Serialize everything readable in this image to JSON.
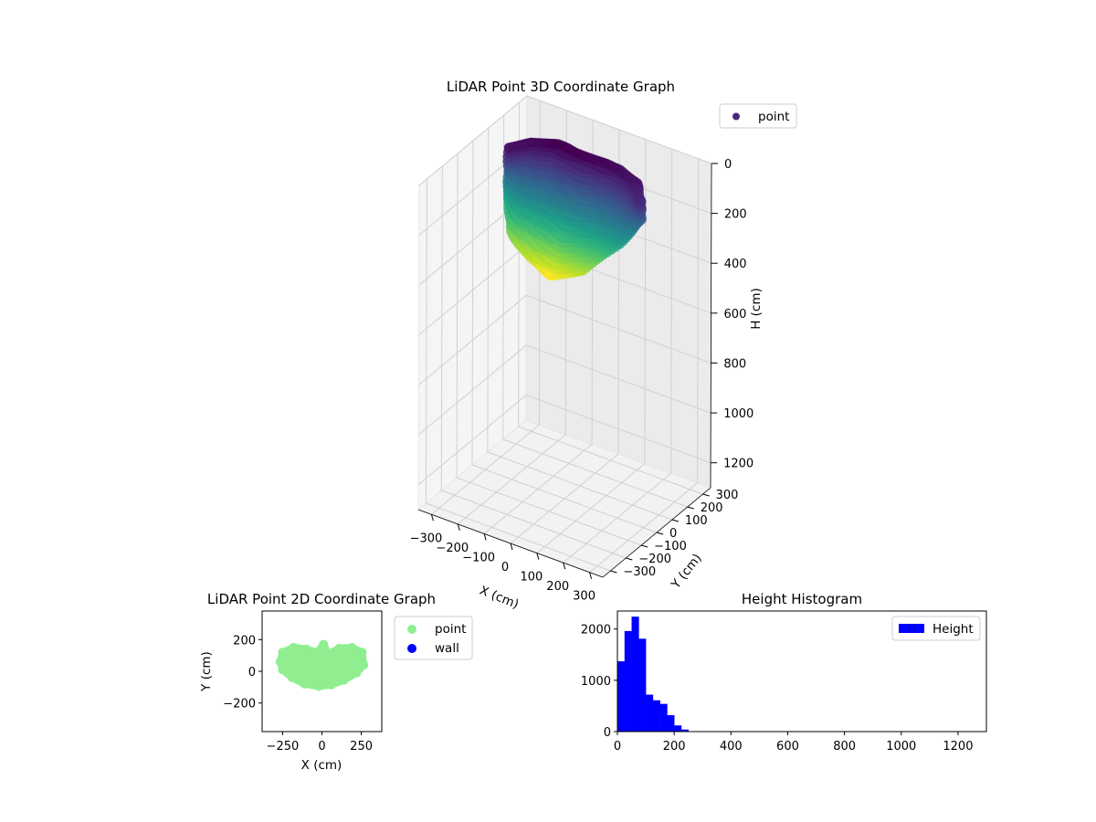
{
  "chart_data": [
    {
      "type": "scatter",
      "projection": "3d",
      "title": "LiDAR Point 3D Coordinate Graph",
      "xlabel": "X (cm)",
      "ylabel": "Y (cm)",
      "zlabel": "H (cm)",
      "xlim": [
        -350,
        350
      ],
      "ylim": [
        -350,
        350
      ],
      "zlim": [
        0,
        1300
      ],
      "z_inverted": true,
      "xticks": [
        "−300",
        "−200",
        "−100",
        "0",
        "100",
        "200",
        "300"
      ],
      "yticks": [
        "−300",
        "−200",
        "−100",
        "0",
        "100",
        "200",
        "300"
      ],
      "zticks": [
        "0",
        "200",
        "400",
        "600",
        "800",
        "1000",
        "1200"
      ],
      "colormap": "viridis",
      "color_by": "H (cm)",
      "legend": {
        "entries": [
          {
            "label": "point",
            "color": "#482878"
          }
        ],
        "location": "top-right"
      },
      "point_cloud_outline": {
        "top_rim": [
          {
            "x": -250,
            "y": 60,
            "h": 20
          },
          {
            "x": -200,
            "y": 120,
            "h": 10
          },
          {
            "x": -120,
            "y": 150,
            "h": 0
          },
          {
            "x": -40,
            "y": 140,
            "h": 0
          },
          {
            "x": 40,
            "y": 145,
            "h": 5
          },
          {
            "x": 120,
            "y": 150,
            "h": 10
          },
          {
            "x": 200,
            "y": 120,
            "h": 20
          },
          {
            "x": 250,
            "y": 60,
            "h": 40
          }
        ],
        "bottom_edge": [
          {
            "x": -250,
            "y": 60,
            "h": 220
          },
          {
            "x": -150,
            "y": -40,
            "h": 280
          },
          {
            "x": -50,
            "y": -80,
            "h": 330
          },
          {
            "x": 30,
            "y": -90,
            "h": 360
          },
          {
            "x": 120,
            "y": -60,
            "h": 320
          },
          {
            "x": 200,
            "y": 0,
            "h": 220
          },
          {
            "x": 250,
            "y": 60,
            "h": 120
          }
        ]
      }
    },
    {
      "type": "scatter",
      "title": "LiDAR Point 2D Coordinate Graph",
      "xlabel": "X (cm)",
      "ylabel": "Y (cm)",
      "xlim": [
        -380,
        380
      ],
      "ylim": [
        -380,
        380
      ],
      "xticks": [
        -250,
        0,
        250
      ],
      "yticks": [
        -200,
        0,
        200
      ],
      "xticklabels": [
        "−250",
        "0",
        "250"
      ],
      "yticklabels": [
        "−200",
        "0",
        "200"
      ],
      "series": [
        {
          "name": "point",
          "color": "#90ee90",
          "outline": [
            {
              "x": -265,
              "y": 60
            },
            {
              "x": -250,
              "y": 120
            },
            {
              "x": -180,
              "y": 150
            },
            {
              "x": -100,
              "y": 140
            },
            {
              "x": -30,
              "y": 120
            },
            {
              "x": 10,
              "y": 170
            },
            {
              "x": 40,
              "y": 110
            },
            {
              "x": 110,
              "y": 145
            },
            {
              "x": 190,
              "y": 150
            },
            {
              "x": 255,
              "y": 120
            },
            {
              "x": 265,
              "y": 40
            },
            {
              "x": 220,
              "y": -10
            },
            {
              "x": 140,
              "y": -55
            },
            {
              "x": 60,
              "y": -85
            },
            {
              "x": -20,
              "y": -95
            },
            {
              "x": -110,
              "y": -80
            },
            {
              "x": -190,
              "y": -40
            },
            {
              "x": -250,
              "y": 10
            }
          ]
        },
        {
          "name": "wall",
          "color": "#0000ff",
          "outline": []
        }
      ],
      "legend": {
        "location": "outside-right"
      }
    },
    {
      "type": "bar",
      "subtype": "histogram",
      "title": "Height Histogram",
      "xlabel": "",
      "ylabel": "",
      "xlim": [
        0,
        1300
      ],
      "ylim": [
        0,
        2350
      ],
      "xticks": [
        0,
        200,
        400,
        600,
        800,
        1000,
        1200
      ],
      "yticks": [
        0,
        1000,
        2000
      ],
      "bin_width": 25,
      "bins_start": [
        0,
        25,
        50,
        75,
        100,
        125,
        150,
        175,
        200,
        225,
        250,
        275
      ],
      "values": [
        1370,
        1960,
        2240,
        1810,
        720,
        610,
        540,
        320,
        120,
        40,
        8,
        2
      ],
      "series": [
        {
          "name": "Height",
          "color": "#0000ff"
        }
      ],
      "legend": {
        "location": "top-right"
      }
    }
  ]
}
